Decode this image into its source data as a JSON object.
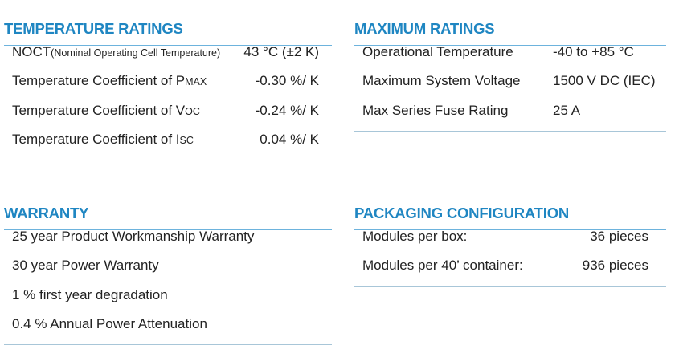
{
  "sections": [
    {
      "title": "TEMPERATURE RATINGS",
      "rows": [
        {
          "label": "NOCT",
          "sub": "(Nominal Operating Cell Temperature)",
          "value": "43 °C (±2 K)"
        },
        {
          "label": "Temperature Coefficient of P",
          "sub": "MAX",
          "value": "-0.30 %/ K"
        },
        {
          "label": "Temperature Coefficient of V",
          "sub": "OC",
          "value": "-0.24 %/ K"
        },
        {
          "label": "Temperature Coefficient of I",
          "sub": "SC",
          "value": "0.04 %/ K"
        }
      ]
    },
    {
      "title": "MAXIMUM RATINGS",
      "rows": [
        {
          "label": "Operational Temperature",
          "value": "-40 to +85 °C"
        },
        {
          "label": "Maximum System Voltage",
          "value": "1500 V DC (IEC)"
        },
        {
          "label": "Max Series Fuse Rating",
          "value": "25 A"
        }
      ]
    },
    {
      "title": "WARRANTY",
      "rows": [
        {
          "label": "25 year Product Workmanship Warranty"
        },
        {
          "label": "30 year Power Warranty"
        },
        {
          "label": "1 % first year degradation"
        },
        {
          "label": "0.4 % Annual Power Attenuation"
        }
      ]
    },
    {
      "title": "PACKAGING CONFIGURATION",
      "rows": [
        {
          "label": "Modules per box:",
          "value": "36 pieces"
        },
        {
          "label": "Modules per 40’ container:",
          "value": "936 pieces"
        }
      ]
    }
  ]
}
